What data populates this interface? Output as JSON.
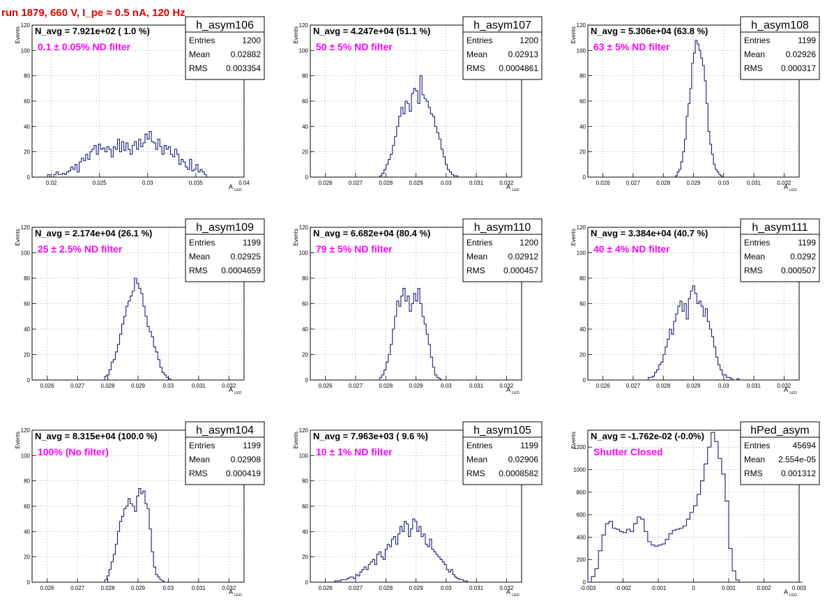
{
  "page": {
    "title": "run 1879,   660 V, I_pe ≈ 0.5 nA, 120 Hz"
  },
  "colors": {
    "histogram": "#1a1a7a",
    "annotation": "#ff00ff",
    "title": "#e00000",
    "grid": "#888888"
  },
  "chart_data": [
    {
      "type": "histogram",
      "name": "h_asym106",
      "xlabel": "A",
      "xlabel_sub": "LED",
      "ylabel": "Events",
      "navg_text": "N_avg = 7.921e+02 ( 1.0 %)",
      "filter_text": "0.1 ± 0.05% ND filter",
      "stats": [
        [
          "Entries",
          "1200"
        ],
        [
          "Mean",
          "0.02882"
        ],
        [
          "RMS",
          "0.003354"
        ]
      ],
      "xlim": [
        0.018,
        0.04
      ],
      "ylim": [
        0,
        120
      ],
      "grid": true,
      "xticks": [
        {
          "v": 0.02,
          "label": "0.02"
        },
        {
          "v": 0.025,
          "label": "0.025"
        },
        {
          "v": 0.03,
          "label": "0.03"
        },
        {
          "v": 0.035,
          "label": "0.035"
        },
        {
          "v": 0.04,
          "label": "0.04"
        }
      ],
      "yticks": [
        0,
        20,
        40,
        60,
        80,
        100,
        120
      ],
      "bins": {
        "start": 0.0185,
        "width": 0.00022,
        "counts": [
          0,
          0,
          0,
          0,
          0,
          2,
          0,
          0,
          2,
          4,
          2,
          2,
          3,
          2,
          4,
          5,
          8,
          6,
          10,
          4,
          12,
          15,
          13,
          18,
          14,
          20,
          22,
          25,
          18,
          26,
          22,
          23,
          20,
          24,
          22,
          16,
          24,
          22,
          30,
          20,
          28,
          21,
          27,
          22,
          18,
          25,
          28,
          22,
          30,
          24,
          27,
          34,
          30,
          36,
          28,
          27,
          22,
          30,
          24,
          18,
          25,
          22,
          24,
          18,
          16,
          22,
          18,
          10,
          14,
          12,
          8,
          6,
          14,
          5,
          6,
          10,
          4,
          6,
          4,
          2,
          0,
          0,
          0,
          0,
          0,
          0,
          0,
          0,
          0,
          0
        ]
      }
    },
    {
      "type": "histogram",
      "name": "h_asym107",
      "xlabel": "A",
      "xlabel_sub": "LED",
      "ylabel": "Events",
      "navg_text": "N_avg = 4.247e+04 (51.1 %)",
      "filter_text": "50 ± 5% ND filter",
      "stats": [
        [
          "Entries",
          "1200"
        ],
        [
          "Mean",
          "0.02913"
        ],
        [
          "RMS",
          "0.0004861"
        ]
      ],
      "xlim": [
        0.0255,
        0.0325
      ],
      "ylim": [
        0,
        120
      ],
      "grid": true,
      "xticks": [
        {
          "v": 0.026,
          "label": "0.026"
        },
        {
          "v": 0.027,
          "label": "0.027"
        },
        {
          "v": 0.028,
          "label": "0.028"
        },
        {
          "v": 0.029,
          "label": "0.029"
        },
        {
          "v": 0.03,
          "label": "0.03"
        },
        {
          "v": 0.031,
          "label": "0.031"
        },
        {
          "v": 0.032,
          "label": "0.032"
        }
      ],
      "yticks": [
        0,
        20,
        40,
        60,
        80,
        100,
        120
      ],
      "bins": {
        "start": 0.0278,
        "width": 7e-05,
        "counts": [
          1,
          3,
          6,
          10,
          14,
          18,
          25,
          32,
          40,
          48,
          55,
          50,
          60,
          58,
          52,
          66,
          70,
          68,
          58,
          80,
          65,
          62,
          60,
          55,
          50,
          48,
          40,
          35,
          30,
          22,
          16,
          10,
          6,
          4,
          2,
          1,
          1,
          0
        ]
      }
    },
    {
      "type": "histogram",
      "name": "h_asym108",
      "xlabel": "A",
      "xlabel_sub": "LED",
      "ylabel": "Events",
      "navg_text": "N_avg = 5.306e+04 (63.8 %)",
      "filter_text": "63 ± 5% ND filter",
      "stats": [
        [
          "Entries",
          "1199"
        ],
        [
          "Mean",
          "0.02926"
        ],
        [
          "RMS",
          "0.000317"
        ]
      ],
      "xlim": [
        0.0255,
        0.0325
      ],
      "ylim": [
        0,
        120
      ],
      "grid": true,
      "xticks": [
        {
          "v": 0.026,
          "label": "0.026"
        },
        {
          "v": 0.027,
          "label": "0.027"
        },
        {
          "v": 0.028,
          "label": "0.028"
        },
        {
          "v": 0.029,
          "label": "0.029"
        },
        {
          "v": 0.03,
          "label": "0.03"
        },
        {
          "v": 0.031,
          "label": "0.031"
        },
        {
          "v": 0.032,
          "label": "0.032"
        }
      ],
      "yticks": [
        0,
        20,
        40,
        60,
        80,
        100,
        120
      ],
      "bins": {
        "start": 0.0284,
        "width": 6e-05,
        "counts": [
          1,
          4,
          6,
          12,
          20,
          30,
          48,
          58,
          70,
          90,
          98,
          108,
          105,
          100,
          94,
          88,
          76,
          58,
          36,
          26,
          18,
          10,
          6,
          4,
          2,
          1,
          0
        ]
      }
    },
    {
      "type": "histogram",
      "name": "h_asym109",
      "xlabel": "A",
      "xlabel_sub": "LED",
      "ylabel": "Events",
      "navg_text": "N_avg = 2.174e+04 (26.1 %)",
      "filter_text": "25 ± 2.5% ND filter",
      "stats": [
        [
          "Entries",
          "1199"
        ],
        [
          "Mean",
          "0.02925"
        ],
        [
          "RMS",
          "0.0004659"
        ]
      ],
      "xlim": [
        0.0255,
        0.0325
      ],
      "ylim": [
        0,
        120
      ],
      "grid": true,
      "xticks": [
        {
          "v": 0.026,
          "label": "0.026"
        },
        {
          "v": 0.027,
          "label": "0.027"
        },
        {
          "v": 0.028,
          "label": "0.028"
        },
        {
          "v": 0.029,
          "label": "0.029"
        },
        {
          "v": 0.03,
          "label": "0.03"
        },
        {
          "v": 0.031,
          "label": "0.031"
        },
        {
          "v": 0.032,
          "label": "0.032"
        }
      ],
      "yticks": [
        0,
        20,
        40,
        60,
        80,
        100,
        120
      ],
      "bins": {
        "start": 0.0279,
        "width": 7e-05,
        "counts": [
          3,
          4,
          8,
          14,
          16,
          22,
          28,
          36,
          44,
          50,
          58,
          62,
          66,
          70,
          80,
          76,
          72,
          68,
          58,
          50,
          42,
          38,
          34,
          26,
          22,
          16,
          10,
          6,
          4,
          2,
          1,
          0
        ]
      }
    },
    {
      "type": "histogram",
      "name": "h_asym110",
      "xlabel": "A",
      "xlabel_sub": "LED",
      "ylabel": "Events",
      "navg_text": "N_avg = 6.682e+04 (80.4 %)",
      "filter_text": "79 ± 5% ND filter",
      "stats": [
        [
          "Entries",
          "1200"
        ],
        [
          "Mean",
          "0.02912"
        ],
        [
          "RMS",
          "0.000457"
        ]
      ],
      "xlim": [
        0.0255,
        0.0325
      ],
      "ylim": [
        0,
        120
      ],
      "grid": true,
      "xticks": [
        {
          "v": 0.026,
          "label": "0.026"
        },
        {
          "v": 0.027,
          "label": "0.027"
        },
        {
          "v": 0.028,
          "label": "0.028"
        },
        {
          "v": 0.029,
          "label": "0.029"
        },
        {
          "v": 0.03,
          "label": "0.03"
        },
        {
          "v": 0.031,
          "label": "0.031"
        },
        {
          "v": 0.032,
          "label": "0.032"
        }
      ],
      "yticks": [
        0,
        20,
        40,
        60,
        80,
        100,
        120
      ],
      "bins": {
        "start": 0.0278,
        "width": 7e-05,
        "counts": [
          2,
          4,
          8,
          14,
          20,
          28,
          40,
          50,
          62,
          58,
          66,
          72,
          62,
          66,
          54,
          60,
          68,
          62,
          72,
          60,
          50,
          44,
          36,
          28,
          18,
          10,
          4,
          2,
          1,
          0
        ]
      }
    },
    {
      "type": "histogram",
      "name": "h_asym111",
      "xlabel": "A",
      "xlabel_sub": "LED",
      "ylabel": "Events",
      "navg_text": "N_avg = 3.384e+04 (40.7 %)",
      "filter_text": "40 ± 4% ND filter",
      "stats": [
        [
          "Entries",
          "1199"
        ],
        [
          "Mean",
          "0.0292"
        ],
        [
          "RMS",
          "0.000507"
        ]
      ],
      "xlim": [
        0.0255,
        0.0325
      ],
      "ylim": [
        0,
        120
      ],
      "grid": true,
      "xticks": [
        {
          "v": 0.026,
          "label": "0.026"
        },
        {
          "v": 0.027,
          "label": "0.027"
        },
        {
          "v": 0.028,
          "label": "0.028"
        },
        {
          "v": 0.029,
          "label": "0.029"
        },
        {
          "v": 0.03,
          "label": "0.03"
        },
        {
          "v": 0.031,
          "label": "0.031"
        },
        {
          "v": 0.032,
          "label": "0.032"
        }
      ],
      "yticks": [
        0,
        20,
        40,
        60,
        80,
        100,
        120
      ],
      "bins": {
        "start": 0.0275,
        "width": 7e-05,
        "counts": [
          2,
          2,
          3,
          6,
          8,
          12,
          14,
          20,
          26,
          32,
          40,
          36,
          46,
          52,
          58,
          62,
          54,
          60,
          48,
          64,
          70,
          74,
          68,
          60,
          62,
          58,
          50,
          56,
          46,
          40,
          34,
          26,
          18,
          12,
          8,
          4,
          4,
          2,
          2,
          1,
          0,
          0,
          1,
          0
        ]
      }
    },
    {
      "type": "histogram",
      "name": "h_asym104",
      "xlabel": "A",
      "xlabel_sub": "LED",
      "ylabel": "Events",
      "navg_text": "N_avg = 8.315e+04 (100.0 %)",
      "filter_text": "100% (No filter)",
      "stats": [
        [
          "Entries",
          "1199"
        ],
        [
          "Mean",
          "0.02908"
        ],
        [
          "RMS",
          "0.000419"
        ]
      ],
      "xlim": [
        0.0255,
        0.0325
      ],
      "ylim": [
        0,
        120
      ],
      "grid": true,
      "xticks": [
        {
          "v": 0.026,
          "label": "0.026"
        },
        {
          "v": 0.027,
          "label": "0.027"
        },
        {
          "v": 0.028,
          "label": "0.028"
        },
        {
          "v": 0.029,
          "label": "0.029"
        },
        {
          "v": 0.03,
          "label": "0.03"
        },
        {
          "v": 0.031,
          "label": "0.031"
        },
        {
          "v": 0.032,
          "label": "0.032"
        }
      ],
      "yticks": [
        0,
        20,
        40,
        60,
        80,
        100,
        120
      ],
      "bins": {
        "start": 0.0279,
        "width": 7e-05,
        "counts": [
          2,
          5,
          10,
          16,
          22,
          30,
          40,
          48,
          52,
          58,
          60,
          66,
          62,
          60,
          56,
          68,
          74,
          70,
          72,
          62,
          58,
          42,
          24,
          12,
          6,
          4,
          2,
          1,
          0
        ]
      }
    },
    {
      "type": "histogram",
      "name": "h_asym105",
      "xlabel": "A",
      "xlabel_sub": "LED",
      "ylabel": "Events",
      "navg_text": "N_avg = 7.963e+03 ( 9.6 %)",
      "filter_text": "10 ± 1% ND filter",
      "stats": [
        [
          "Entries",
          "1199"
        ],
        [
          "Mean",
          "0.02906"
        ],
        [
          "RMS",
          "0.0008582"
        ]
      ],
      "xlim": [
        0.0255,
        0.0325
      ],
      "ylim": [
        0,
        120
      ],
      "grid": true,
      "xticks": [
        {
          "v": 0.026,
          "label": "0.026"
        },
        {
          "v": 0.027,
          "label": "0.027"
        },
        {
          "v": 0.028,
          "label": "0.028"
        },
        {
          "v": 0.029,
          "label": "0.029"
        },
        {
          "v": 0.03,
          "label": "0.03"
        },
        {
          "v": 0.031,
          "label": "0.031"
        },
        {
          "v": 0.032,
          "label": "0.032"
        }
      ],
      "yticks": [
        0,
        20,
        40,
        60,
        80,
        100,
        120
      ],
      "bins": {
        "start": 0.0263,
        "width": 7e-05,
        "counts": [
          1,
          1,
          1,
          2,
          2,
          2,
          3,
          4,
          4,
          3,
          6,
          5,
          8,
          10,
          12,
          10,
          14,
          16,
          18,
          14,
          22,
          24,
          20,
          18,
          26,
          30,
          28,
          34,
          36,
          30,
          38,
          44,
          40,
          48,
          46,
          36,
          42,
          50,
          48,
          40,
          44,
          36,
          38,
          30,
          28,
          34,
          26,
          24,
          22,
          20,
          18,
          16,
          14,
          10,
          8,
          10,
          6,
          4,
          3,
          2,
          2,
          1,
          1,
          0
        ]
      }
    },
    {
      "type": "histogram",
      "name": "hPed_asym",
      "xlabel": "A",
      "xlabel_sub": "LED",
      "ylabel": "Events",
      "navg_text": "N_avg = -1.762e-02 (-0.0%)",
      "filter_text": "Shutter Closed",
      "stats": [
        [
          "Entries",
          "45694"
        ],
        [
          "Mean",
          "2.554e-05"
        ],
        [
          "RMS",
          "0.001312"
        ]
      ],
      "xlim": [
        -0.003,
        0.003
      ],
      "ylim": [
        0,
        1350
      ],
      "grid": true,
      "xticks": [
        {
          "v": -0.003,
          "label": "-0.003"
        },
        {
          "v": -0.002,
          "label": "-0.002"
        },
        {
          "v": -0.001,
          "label": "-0.001"
        },
        {
          "v": 0,
          "label": "0"
        },
        {
          "v": 0.001,
          "label": "0.001"
        },
        {
          "v": 0.002,
          "label": "0.002"
        },
        {
          "v": 0.003,
          "label": "0.003"
        }
      ],
      "yticks": [
        0,
        200,
        400,
        600,
        800,
        1000,
        1200
      ],
      "bins": {
        "start": -0.0029,
        "width": 0.0001,
        "counts": [
          50,
          120,
          280,
          420,
          520,
          540,
          480,
          470,
          450,
          440,
          470,
          450,
          520,
          580,
          560,
          450,
          360,
          330,
          320,
          330,
          340,
          380,
          430,
          460,
          470,
          480,
          500,
          560,
          620,
          680,
          780,
          900,
          1050,
          1200,
          1330,
          1250,
          1100,
          960,
          720,
          300,
          100,
          20,
          0,
          0,
          0,
          0,
          0,
          0,
          0,
          0,
          0,
          0,
          0,
          0,
          0,
          0,
          0,
          0,
          0,
          0
        ]
      }
    }
  ]
}
